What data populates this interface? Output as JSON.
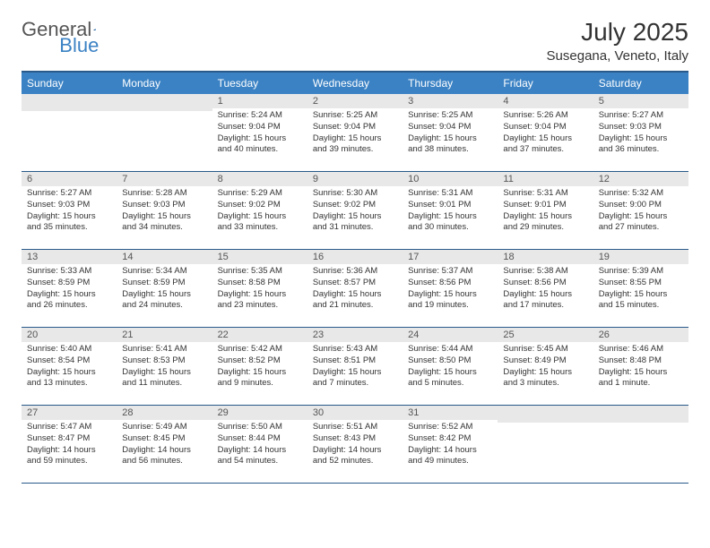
{
  "logo": {
    "part1": "General",
    "part2": "Blue"
  },
  "title": "July 2025",
  "location": "Susegana, Veneto, Italy",
  "weekdays": [
    "Sunday",
    "Monday",
    "Tuesday",
    "Wednesday",
    "Thursday",
    "Friday",
    "Saturday"
  ],
  "colors": {
    "header_bg": "#3b82c4",
    "header_border": "#2a5a8a",
    "daynum_bg": "#e8e8e8"
  },
  "weeks": [
    [
      {
        "n": "",
        "sr": "",
        "ss": "",
        "dl": ""
      },
      {
        "n": "",
        "sr": "",
        "ss": "",
        "dl": ""
      },
      {
        "n": "1",
        "sr": "Sunrise: 5:24 AM",
        "ss": "Sunset: 9:04 PM",
        "dl": "Daylight: 15 hours and 40 minutes."
      },
      {
        "n": "2",
        "sr": "Sunrise: 5:25 AM",
        "ss": "Sunset: 9:04 PM",
        "dl": "Daylight: 15 hours and 39 minutes."
      },
      {
        "n": "3",
        "sr": "Sunrise: 5:25 AM",
        "ss": "Sunset: 9:04 PM",
        "dl": "Daylight: 15 hours and 38 minutes."
      },
      {
        "n": "4",
        "sr": "Sunrise: 5:26 AM",
        "ss": "Sunset: 9:04 PM",
        "dl": "Daylight: 15 hours and 37 minutes."
      },
      {
        "n": "5",
        "sr": "Sunrise: 5:27 AM",
        "ss": "Sunset: 9:03 PM",
        "dl": "Daylight: 15 hours and 36 minutes."
      }
    ],
    [
      {
        "n": "6",
        "sr": "Sunrise: 5:27 AM",
        "ss": "Sunset: 9:03 PM",
        "dl": "Daylight: 15 hours and 35 minutes."
      },
      {
        "n": "7",
        "sr": "Sunrise: 5:28 AM",
        "ss": "Sunset: 9:03 PM",
        "dl": "Daylight: 15 hours and 34 minutes."
      },
      {
        "n": "8",
        "sr": "Sunrise: 5:29 AM",
        "ss": "Sunset: 9:02 PM",
        "dl": "Daylight: 15 hours and 33 minutes."
      },
      {
        "n": "9",
        "sr": "Sunrise: 5:30 AM",
        "ss": "Sunset: 9:02 PM",
        "dl": "Daylight: 15 hours and 31 minutes."
      },
      {
        "n": "10",
        "sr": "Sunrise: 5:31 AM",
        "ss": "Sunset: 9:01 PM",
        "dl": "Daylight: 15 hours and 30 minutes."
      },
      {
        "n": "11",
        "sr": "Sunrise: 5:31 AM",
        "ss": "Sunset: 9:01 PM",
        "dl": "Daylight: 15 hours and 29 minutes."
      },
      {
        "n": "12",
        "sr": "Sunrise: 5:32 AM",
        "ss": "Sunset: 9:00 PM",
        "dl": "Daylight: 15 hours and 27 minutes."
      }
    ],
    [
      {
        "n": "13",
        "sr": "Sunrise: 5:33 AM",
        "ss": "Sunset: 8:59 PM",
        "dl": "Daylight: 15 hours and 26 minutes."
      },
      {
        "n": "14",
        "sr": "Sunrise: 5:34 AM",
        "ss": "Sunset: 8:59 PM",
        "dl": "Daylight: 15 hours and 24 minutes."
      },
      {
        "n": "15",
        "sr": "Sunrise: 5:35 AM",
        "ss": "Sunset: 8:58 PM",
        "dl": "Daylight: 15 hours and 23 minutes."
      },
      {
        "n": "16",
        "sr": "Sunrise: 5:36 AM",
        "ss": "Sunset: 8:57 PM",
        "dl": "Daylight: 15 hours and 21 minutes."
      },
      {
        "n": "17",
        "sr": "Sunrise: 5:37 AM",
        "ss": "Sunset: 8:56 PM",
        "dl": "Daylight: 15 hours and 19 minutes."
      },
      {
        "n": "18",
        "sr": "Sunrise: 5:38 AM",
        "ss": "Sunset: 8:56 PM",
        "dl": "Daylight: 15 hours and 17 minutes."
      },
      {
        "n": "19",
        "sr": "Sunrise: 5:39 AM",
        "ss": "Sunset: 8:55 PM",
        "dl": "Daylight: 15 hours and 15 minutes."
      }
    ],
    [
      {
        "n": "20",
        "sr": "Sunrise: 5:40 AM",
        "ss": "Sunset: 8:54 PM",
        "dl": "Daylight: 15 hours and 13 minutes."
      },
      {
        "n": "21",
        "sr": "Sunrise: 5:41 AM",
        "ss": "Sunset: 8:53 PM",
        "dl": "Daylight: 15 hours and 11 minutes."
      },
      {
        "n": "22",
        "sr": "Sunrise: 5:42 AM",
        "ss": "Sunset: 8:52 PM",
        "dl": "Daylight: 15 hours and 9 minutes."
      },
      {
        "n": "23",
        "sr": "Sunrise: 5:43 AM",
        "ss": "Sunset: 8:51 PM",
        "dl": "Daylight: 15 hours and 7 minutes."
      },
      {
        "n": "24",
        "sr": "Sunrise: 5:44 AM",
        "ss": "Sunset: 8:50 PM",
        "dl": "Daylight: 15 hours and 5 minutes."
      },
      {
        "n": "25",
        "sr": "Sunrise: 5:45 AM",
        "ss": "Sunset: 8:49 PM",
        "dl": "Daylight: 15 hours and 3 minutes."
      },
      {
        "n": "26",
        "sr": "Sunrise: 5:46 AM",
        "ss": "Sunset: 8:48 PM",
        "dl": "Daylight: 15 hours and 1 minute."
      }
    ],
    [
      {
        "n": "27",
        "sr": "Sunrise: 5:47 AM",
        "ss": "Sunset: 8:47 PM",
        "dl": "Daylight: 14 hours and 59 minutes."
      },
      {
        "n": "28",
        "sr": "Sunrise: 5:49 AM",
        "ss": "Sunset: 8:45 PM",
        "dl": "Daylight: 14 hours and 56 minutes."
      },
      {
        "n": "29",
        "sr": "Sunrise: 5:50 AM",
        "ss": "Sunset: 8:44 PM",
        "dl": "Daylight: 14 hours and 54 minutes."
      },
      {
        "n": "30",
        "sr": "Sunrise: 5:51 AM",
        "ss": "Sunset: 8:43 PM",
        "dl": "Daylight: 14 hours and 52 minutes."
      },
      {
        "n": "31",
        "sr": "Sunrise: 5:52 AM",
        "ss": "Sunset: 8:42 PM",
        "dl": "Daylight: 14 hours and 49 minutes."
      },
      {
        "n": "",
        "sr": "",
        "ss": "",
        "dl": ""
      },
      {
        "n": "",
        "sr": "",
        "ss": "",
        "dl": ""
      }
    ]
  ]
}
